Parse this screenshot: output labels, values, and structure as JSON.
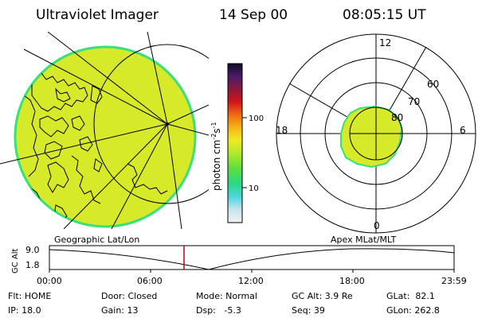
{
  "header": {
    "instrument": "Ultraviolet Imager",
    "date": "14 Sep 00",
    "time": "08:05:15 UT"
  },
  "colorbar": {
    "unit_label": "photon cm",
    "unit_sup1": "-2",
    "unit_mid": "s",
    "unit_sup2": "-1",
    "tick_labels": [
      "100",
      "10"
    ]
  },
  "polar_plot": {
    "mlt_labels": [
      "12",
      "18",
      "6",
      "0"
    ],
    "lat_labels": [
      "60",
      "70",
      "80"
    ]
  },
  "timeline": {
    "left_title": "Geographic Lat/Lon",
    "right_title": "Apex MLat/MLT",
    "y_axis_label": "GC Alt",
    "y_ticks": [
      "9.0",
      "1.8"
    ],
    "x_ticks": [
      "00:00",
      "06:00",
      "12:00",
      "18:00",
      "23:59"
    ]
  },
  "status": {
    "row1": [
      "Flt: HOME",
      "Door: Closed",
      "Mode: Normal",
      "GC Alt: 3.9 Re",
      "GLat:  82.1"
    ],
    "row2": [
      "IP: 18.0",
      "Gain: 13",
      "Dsp:   -5.3",
      "Seq: 39",
      "GLon: 262.8"
    ]
  },
  "colors": {
    "emission": "#d7ea2a",
    "edge": "#38e07a",
    "marker": "#d00000"
  }
}
